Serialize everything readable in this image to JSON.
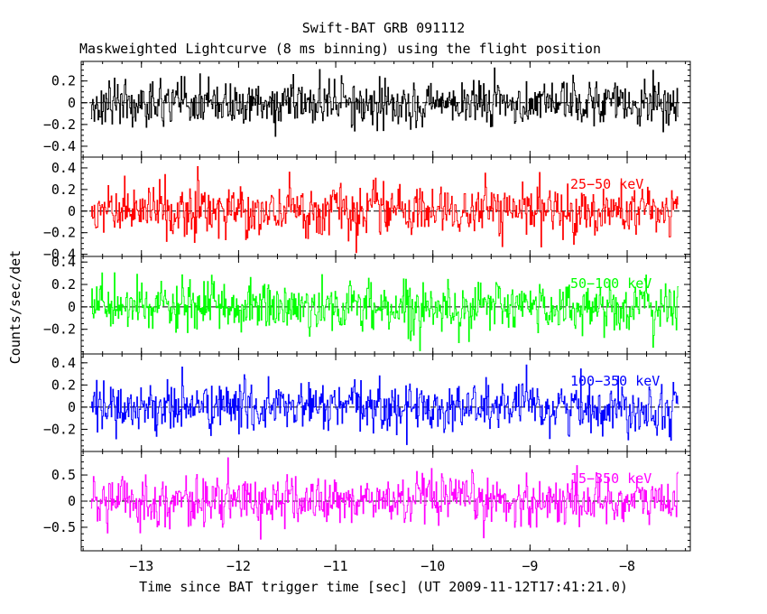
{
  "chart_data": {
    "type": "line",
    "title": "Swift-BAT GRB 091112",
    "subtitle": "Maskweighted Lightcurve (8 ms binning) using the flight position",
    "xlabel": "Time since BAT trigger time [sec] (UT 2009-11-12T17:41:21.0)",
    "ylabel": "Counts/sec/det",
    "xlim": [
      -13.62,
      -7.35
    ],
    "xticks": [
      -13,
      -12,
      -11,
      -10,
      -9,
      -8
    ],
    "xtick_labels": [
      "−13",
      "−12",
      "−11",
      "−10",
      "−9",
      "−8"
    ],
    "data_x_range": [
      -13.52,
      -7.47
    ],
    "bin_width_s": 0.008,
    "grid": false,
    "panels": [
      {
        "band": "",
        "color": "#000000",
        "ylim": [
          -0.5,
          0.38
        ],
        "yticks": [
          -0.4,
          -0.2,
          0,
          0.2
        ],
        "ytick_labels": [
          "−0.4",
          "−0.2",
          "0",
          "0.2"
        ],
        "noise_sigma": 0.12,
        "peak_max": 0.33,
        "peak_min": -0.46
      },
      {
        "band": "25−50 keV",
        "color": "#ff0000",
        "ylim": [
          -0.42,
          0.5
        ],
        "yticks": [
          -0.4,
          -0.2,
          0,
          0.2,
          0.4
        ],
        "ytick_labels": [
          "−0.4",
          "−0.2",
          "0",
          "0.2",
          "0.4"
        ],
        "noise_sigma": 0.13,
        "peak_max": 0.47,
        "peak_min": -0.42
      },
      {
        "band": "50−100 keV",
        "color": "#00ff00",
        "ylim": [
          -0.42,
          0.45
        ],
        "yticks": [
          -0.2,
          0,
          0.2,
          0.4
        ],
        "ytick_labels": [
          "−0.2",
          "0",
          "0.2",
          "0.4"
        ],
        "noise_sigma": 0.13,
        "peak_max": 0.43,
        "peak_min": -0.42
      },
      {
        "band": "100−350 keV",
        "color": "#0000ff",
        "ylim": [
          -0.4,
          0.48
        ],
        "yticks": [
          -0.2,
          0,
          0.2,
          0.4
        ],
        "ytick_labels": [
          "−0.2",
          "0",
          "0.2",
          "0.4"
        ],
        "noise_sigma": 0.13,
        "peak_max": 0.46,
        "peak_min": -0.38
      },
      {
        "band": "15−350 keV",
        "color": "#ff00ff",
        "ylim": [
          -0.95,
          0.95
        ],
        "yticks": [
          -0.5,
          0,
          0.5
        ],
        "ytick_labels": [
          "−0.5",
          "0",
          "0.5"
        ],
        "noise_sigma": 0.27,
        "peak_max": 0.87,
        "peak_min": -0.93
      }
    ]
  }
}
